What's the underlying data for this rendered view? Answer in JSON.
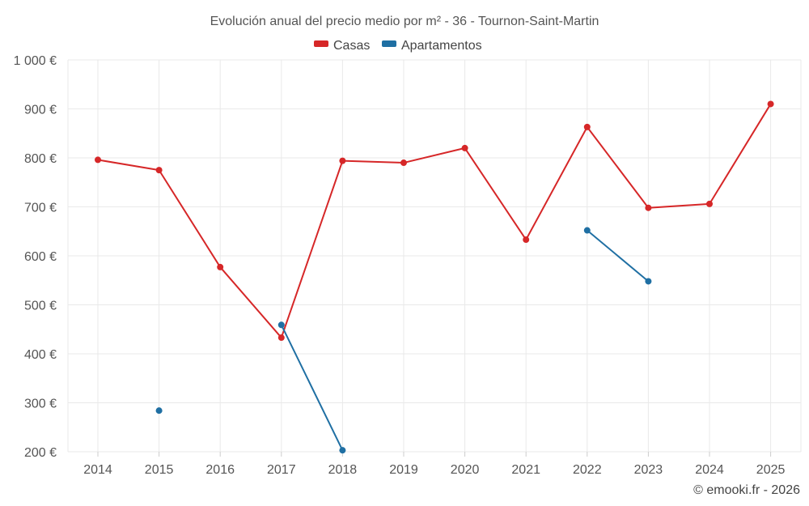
{
  "chart_data": {
    "type": "line",
    "title": "Evolución anual del precio medio por m² - 36 - Tournon-Saint-Martin",
    "categories": [
      "2014",
      "2015",
      "2016",
      "2017",
      "2018",
      "2019",
      "2020",
      "2021",
      "2022",
      "2023",
      "2024",
      "2025"
    ],
    "y_ticks": [
      200,
      300,
      400,
      500,
      600,
      700,
      800,
      900,
      1000
    ],
    "y_tick_labels": [
      "200 €",
      "300 €",
      "400 €",
      "500 €",
      "600 €",
      "700 €",
      "800 €",
      "900 €",
      "1 000 €"
    ],
    "ylim": [
      200,
      1000
    ],
    "grid": true,
    "legend_position": "top-center",
    "series": [
      {
        "name": "Casas",
        "color": "#d62728",
        "values": [
          796,
          775,
          577,
          433,
          794,
          790,
          820,
          633,
          863,
          698,
          706,
          910
        ]
      },
      {
        "name": "Apartamentos",
        "color": "#1f6fa3",
        "values": [
          null,
          284,
          null,
          459,
          203,
          null,
          null,
          null,
          652,
          548,
          null,
          null
        ]
      }
    ],
    "credit": "© emooki.fr - 2026"
  }
}
